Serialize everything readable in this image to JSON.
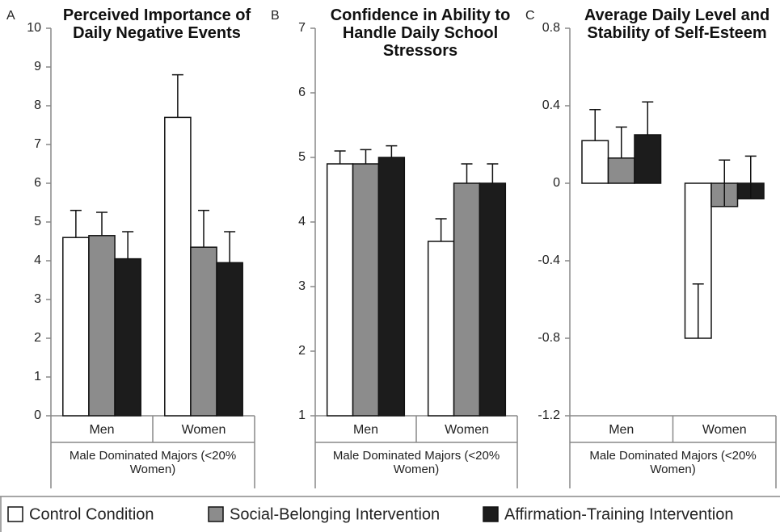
{
  "chart_data": [
    {
      "type": "bar",
      "label": "A",
      "title": "Perceived Importance of Daily Negative Events",
      "categories": [
        "Men",
        "Women"
      ],
      "group_label": "Male Dominated Majors (<20% Women)",
      "ylim": [
        0,
        10
      ],
      "yticks": [
        0,
        1,
        2,
        3,
        4,
        5,
        6,
        7,
        8,
        9,
        10
      ],
      "series": [
        {
          "color": "#ffffff",
          "values": [
            4.6,
            7.7
          ],
          "errors": [
            0.7,
            1.1
          ]
        },
        {
          "color": "#8c8c8c",
          "values": [
            4.65,
            4.35
          ],
          "errors": [
            0.6,
            0.95
          ]
        },
        {
          "color": "#1c1c1c",
          "values": [
            4.05,
            3.95
          ],
          "errors": [
            0.7,
            0.8
          ]
        }
      ]
    },
    {
      "type": "bar",
      "label": "B",
      "title": "Confidence in Ability to Handle Daily School Stressors",
      "categories": [
        "Men",
        "Women"
      ],
      "group_label": "Male Dominated Majors (<20% Women)",
      "ylim": [
        1,
        7
      ],
      "yticks": [
        1,
        2,
        3,
        4,
        5,
        6,
        7
      ],
      "series": [
        {
          "color": "#ffffff",
          "values": [
            4.9,
            3.7
          ],
          "errors": [
            0.2,
            0.35
          ]
        },
        {
          "color": "#8c8c8c",
          "values": [
            4.9,
            4.6
          ],
          "errors": [
            0.22,
            0.3
          ]
        },
        {
          "color": "#1c1c1c",
          "values": [
            5.0,
            4.6
          ],
          "errors": [
            0.18,
            0.3
          ]
        }
      ]
    },
    {
      "type": "bar",
      "label": "C",
      "title": "Average Daily Level and Stability of Self-Esteem",
      "categories": [
        "Men",
        "Women"
      ],
      "group_label": "Male Dominated Majors (<20% Women)",
      "ylim": [
        -1.2,
        0.8
      ],
      "yticks": [
        -1.2,
        -0.8,
        -0.4,
        0,
        0.4,
        0.8
      ],
      "series": [
        {
          "color": "#ffffff",
          "values": [
            0.22,
            -0.8
          ],
          "errors": [
            0.16,
            0.28
          ]
        },
        {
          "color": "#8c8c8c",
          "values": [
            0.13,
            -0.12
          ],
          "errors": [
            0.16,
            0.24
          ]
        },
        {
          "color": "#1c1c1c",
          "values": [
            0.25,
            -0.08
          ],
          "errors": [
            0.17,
            0.22
          ]
        }
      ]
    }
  ],
  "legend": [
    {
      "name": "Control Condition",
      "color": "#ffffff"
    },
    {
      "name": "Social-Belonging Intervention",
      "color": "#8c8c8c"
    },
    {
      "name": "Affirmation-Training Intervention",
      "color": "#1c1c1c"
    }
  ]
}
